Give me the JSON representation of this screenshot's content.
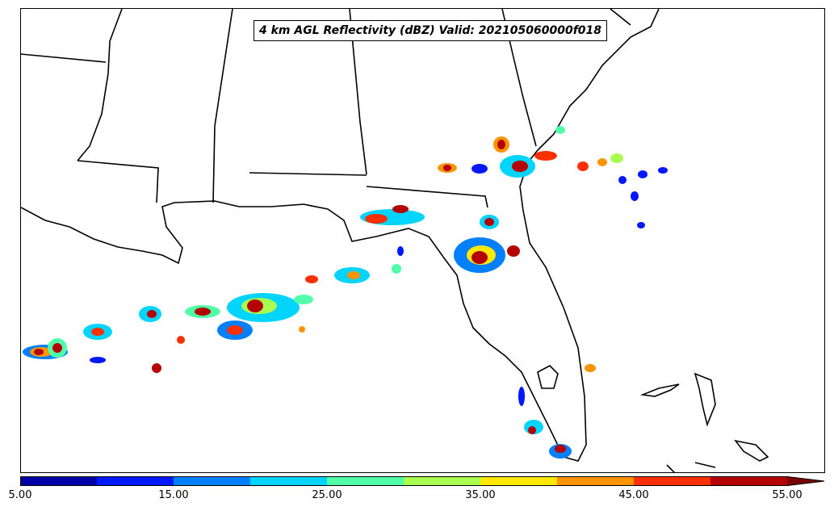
{
  "map": {
    "title": "4 km AGL Reflectivity (dBZ) Valid: 202105060000f018"
  },
  "colorbar": {
    "colors": [
      "#0000a8",
      "#0018ff",
      "#0080ff",
      "#00d4ff",
      "#50ffa8",
      "#a8ff50",
      "#ffe800",
      "#ff9400",
      "#ff3000",
      "#b40000",
      "#7a0000"
    ],
    "tick_labels": [
      "5.00",
      "15.00",
      "25.00",
      "35.00",
      "45.00",
      "55.00"
    ]
  }
}
